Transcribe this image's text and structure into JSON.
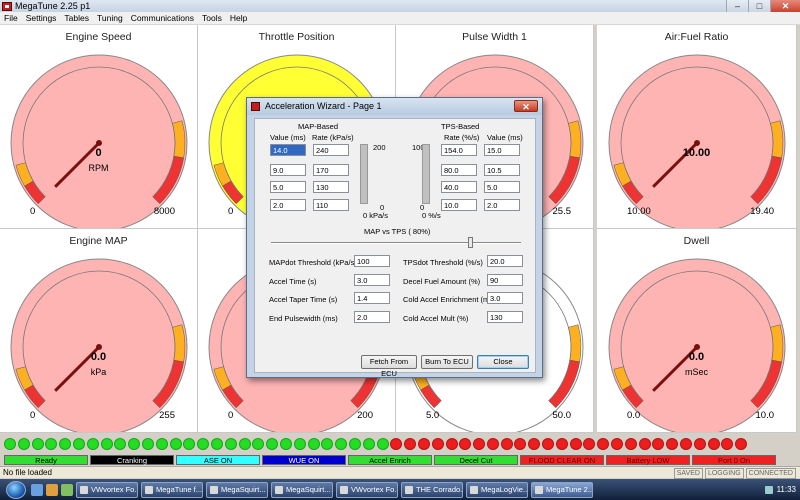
{
  "window": {
    "title": "MegaTune 2.25 p1"
  },
  "menu": [
    "File",
    "Settings",
    "Tables",
    "Tuning",
    "Communications",
    "Tools",
    "Help"
  ],
  "gauges": [
    {
      "title": "Engine Speed",
      "value": "0",
      "unit": "RPM",
      "min": "0",
      "max": "8000",
      "face": "#ffb4b4"
    },
    {
      "title": "Throttle Position",
      "value": "",
      "unit": "",
      "min": "0",
      "max": "",
      "face": "#ffff33"
    },
    {
      "title": "Pulse Width 1",
      "value": "",
      "unit": "",
      "min": "",
      "max": "25.5",
      "face": "#ffb4b4"
    },
    {
      "title": "Air:Fuel Ratio",
      "value": "10.00",
      "unit": "",
      "min": "10.00",
      "max": "19.40",
      "face": "#ffb4b4"
    },
    {
      "title": "Engine MAP",
      "value": "0.0",
      "unit": "kPa",
      "min": "0",
      "max": "255",
      "face": "#ffb4b4"
    },
    {
      "title": "",
      "value": "",
      "unit": "",
      "min": "0",
      "max": "200",
      "face": "#ffb4b4"
    },
    {
      "title": "",
      "value": "",
      "unit": "",
      "min": "5.0",
      "max": "50.0",
      "face": "#ffffff"
    },
    {
      "title": "Dwell",
      "value": "0.0",
      "unit": "mSec",
      "min": "0.0",
      "max": "10.0",
      "face": "#ffb4b4"
    }
  ],
  "indicators": [
    {
      "label": "Ready",
      "bg": "#33dd33",
      "fg": "#000000"
    },
    {
      "label": "Cranking",
      "bg": "#000000",
      "fg": "#ffffff"
    },
    {
      "label": "ASE ON",
      "bg": "#33ffff",
      "fg": "#000000"
    },
    {
      "label": "WUE ON",
      "bg": "#0000cc",
      "fg": "#ffffff"
    },
    {
      "label": "Accel Enrich",
      "bg": "#33dd33",
      "fg": "#000000"
    },
    {
      "label": "Decel Cut",
      "bg": "#33dd33",
      "fg": "#000000"
    },
    {
      "label": "FLOOD CLEAR ON",
      "bg": "#ee2222",
      "fg": "#660000"
    },
    {
      "label": "Battery LOW",
      "bg": "#ee2222",
      "fg": "#660000"
    },
    {
      "label": "Port 0 On",
      "bg": "#ee2222",
      "fg": "#660000"
    }
  ],
  "status": {
    "file": "No file loaded",
    "flags": [
      "SAVED",
      "LOGGING",
      "CONNECTED"
    ]
  },
  "taskbar": {
    "tasks": [
      "VWvortex Fo...",
      "MegaTune f...",
      "MegaSquirt...",
      "MegaSquirt...",
      "VWvortex Fo...",
      "THE Corrado...",
      "MegaLogVie...",
      "MegaTune 2..."
    ],
    "clock": "11:33"
  },
  "dialog": {
    "title": "Acceleration Wizard - Page 1",
    "map_header": "MAP-Based",
    "tps_header": "TPS-Based",
    "map_cols": [
      "Value (ms)",
      "Rate (kPa/s)"
    ],
    "tps_cols": [
      "Rate (%/s)",
      "Value (ms)"
    ],
    "map_rows": [
      [
        "14.0",
        "240"
      ],
      [
        "9.0",
        "170"
      ],
      [
        "5.0",
        "130"
      ],
      [
        "2.0",
        "110"
      ]
    ],
    "tps_rows": [
      [
        "154.0",
        "15.0"
      ],
      [
        "80.0",
        "10.5"
      ],
      [
        "40.0",
        "5.0"
      ],
      [
        "10.0",
        "2.0"
      ]
    ],
    "map_bar": {
      "top": "200",
      "bottom": "0",
      "unit": "0 kPa/s"
    },
    "tps_bar": {
      "top": "100",
      "bottom": "0",
      "unit": "0 %/s"
    },
    "slider_label": "MAP vs TPS ( 80%)",
    "slider_value": 0.8,
    "params_left": [
      {
        "label": "MAPdot Threshold (kPa/s)",
        "value": "100"
      },
      {
        "label": "Accel Time (s)",
        "value": "3.0"
      },
      {
        "label": "Accel Taper Time (s)",
        "value": "1.4"
      },
      {
        "label": "End Pulsewidth (ms)",
        "value": "2.0"
      }
    ],
    "params_right": [
      {
        "label": "TPSdot Threshold (%/s)",
        "value": "20.0"
      },
      {
        "label": "Decel Fuel Amount (%)",
        "value": "90"
      },
      {
        "label": "Cold Accel Enrichment (ms)",
        "value": "3.0"
      },
      {
        "label": "Cold Accel Mult (%)",
        "value": "130"
      }
    ],
    "buttons": {
      "fetch": "Fetch From ECU",
      "burn": "Burn To ECU",
      "close": "Close"
    }
  }
}
